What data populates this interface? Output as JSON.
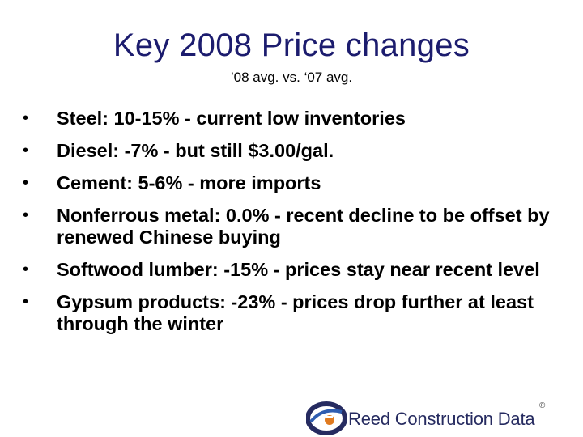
{
  "slide": {
    "title": "Key 2008 Price changes",
    "subtitle": "’08 avg. vs. ‘07 avg.",
    "bullet_glyph": "•",
    "bullets": [
      "Steel: 10-15% - current low inventories",
      "Diesel: -7% - but still $3.00/gal.",
      "Cement: 5-6% - more imports",
      "Nonferrous metal: 0.0% - recent decline to be offset by renewed Chinese buying",
      "Softwood lumber: -15% - prices stay near recent level",
      "Gypsum products: -23% - prices drop further at least through the winter"
    ]
  },
  "logo": {
    "text": "Reed Construction Data",
    "registered_mark": "®",
    "colors": {
      "dark_blue": "#262b60",
      "orange": "#e07a1f",
      "mid_blue": "#2f5db0"
    }
  }
}
